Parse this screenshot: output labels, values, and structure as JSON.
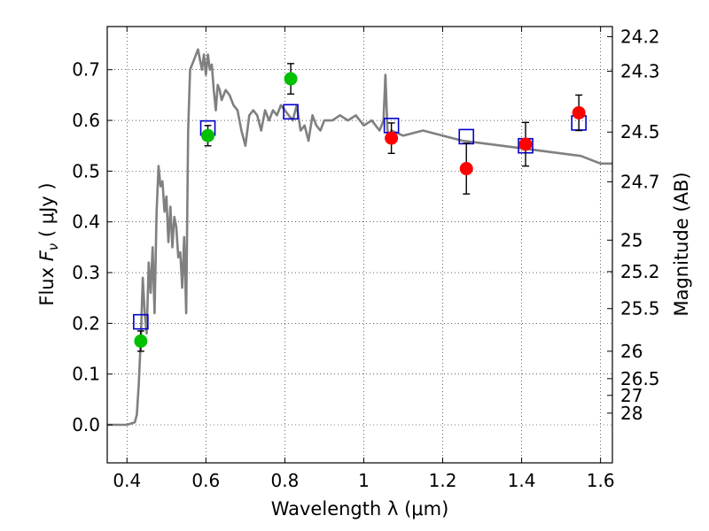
{
  "chart_data": {
    "type": "scatter",
    "xlabel": "Wavelength  λ (μm)",
    "ylabel_prefix": "Flux  ",
    "ylabel_symbol": "F",
    "ylabel_subscript": "ν",
    "ylabel_suffix": "  ( μJy )",
    "y2label": "Magnitude (AB)",
    "xlim": [
      0.35,
      1.63
    ],
    "ylim": [
      -0.075,
      0.785
    ],
    "grid": true,
    "xticks": [
      0.4,
      0.6,
      0.8,
      1.0,
      1.2,
      1.4,
      1.6
    ],
    "xtick_labels": [
      "0.4",
      "0.6",
      "0.8",
      "1",
      "1.2",
      "1.4",
      "1.6"
    ],
    "yticks": [
      0.0,
      0.1,
      0.2,
      0.3,
      0.4,
      0.5,
      0.6,
      0.7
    ],
    "ytick_labels": [
      "0.0",
      "0.1",
      "0.2",
      "0.3",
      "0.4",
      "0.5",
      "0.6",
      "0.7"
    ],
    "y2ticks": [
      {
        "label": "24.2",
        "flux": 0.765
      },
      {
        "label": "24.3",
        "flux": 0.697
      },
      {
        "label": "24.5",
        "flux": 0.577
      },
      {
        "label": "24.7",
        "flux": 0.479
      },
      {
        "label": "25",
        "flux": 0.364
      },
      {
        "label": "25.2",
        "flux": 0.302
      },
      {
        "label": "25.5",
        "flux": 0.229
      },
      {
        "label": "26",
        "flux": 0.145
      },
      {
        "label": "26.5",
        "flux": 0.091
      },
      {
        "label": "27",
        "flux": 0.058
      },
      {
        "label": "28",
        "flux": 0.023
      }
    ],
    "series": [
      {
        "kind": "line",
        "color": "#808080",
        "x": [
          0.35,
          0.4,
          0.42,
          0.425,
          0.43,
          0.435,
          0.44,
          0.445,
          0.45,
          0.455,
          0.46,
          0.465,
          0.47,
          0.475,
          0.48,
          0.485,
          0.49,
          0.495,
          0.5,
          0.505,
          0.51,
          0.515,
          0.52,
          0.525,
          0.53,
          0.535,
          0.54,
          0.545,
          0.55,
          0.555,
          0.56,
          0.57,
          0.58,
          0.585,
          0.59,
          0.595,
          0.6,
          0.605,
          0.61,
          0.615,
          0.62,
          0.625,
          0.63,
          0.635,
          0.64,
          0.65,
          0.66,
          0.67,
          0.68,
          0.69,
          0.7,
          0.71,
          0.72,
          0.73,
          0.74,
          0.75,
          0.76,
          0.77,
          0.78,
          0.79,
          0.8,
          0.81,
          0.82,
          0.83,
          0.84,
          0.85,
          0.86,
          0.87,
          0.88,
          0.89,
          0.9,
          0.92,
          0.94,
          0.96,
          0.98,
          1.0,
          1.02,
          1.04,
          1.05,
          1.055,
          1.06,
          1.065,
          1.07,
          1.1,
          1.15,
          1.2,
          1.25,
          1.3,
          1.35,
          1.4,
          1.45,
          1.5,
          1.55,
          1.6,
          1.63
        ],
        "y": [
          0.0,
          0.0,
          0.005,
          0.02,
          0.08,
          0.17,
          0.29,
          0.22,
          0.18,
          0.32,
          0.26,
          0.35,
          0.22,
          0.42,
          0.51,
          0.47,
          0.48,
          0.42,
          0.45,
          0.36,
          0.43,
          0.35,
          0.41,
          0.39,
          0.33,
          0.34,
          0.27,
          0.37,
          0.22,
          0.58,
          0.7,
          0.72,
          0.74,
          0.72,
          0.7,
          0.73,
          0.69,
          0.73,
          0.7,
          0.71,
          0.66,
          0.62,
          0.67,
          0.66,
          0.64,
          0.66,
          0.65,
          0.63,
          0.62,
          0.58,
          0.55,
          0.61,
          0.62,
          0.61,
          0.58,
          0.62,
          0.6,
          0.62,
          0.61,
          0.63,
          0.62,
          0.61,
          0.6,
          0.63,
          0.58,
          0.59,
          0.56,
          0.61,
          0.59,
          0.58,
          0.6,
          0.6,
          0.61,
          0.6,
          0.61,
          0.59,
          0.6,
          0.58,
          0.6,
          0.69,
          0.58,
          0.57,
          0.58,
          0.57,
          0.58,
          0.57,
          0.56,
          0.555,
          0.55,
          0.545,
          0.54,
          0.535,
          0.53,
          0.515,
          0.515
        ]
      },
      {
        "kind": "square",
        "color": "#0000cc",
        "x": [
          0.435,
          0.605,
          0.815,
          1.07,
          1.26,
          1.41,
          1.545
        ],
        "y": [
          0.203,
          0.585,
          0.617,
          0.59,
          0.568,
          0.55,
          0.595
        ]
      },
      {
        "kind": "circle",
        "color": "#00c000",
        "x": [
          0.435,
          0.605,
          0.815
        ],
        "y": [
          0.165,
          0.57,
          0.682
        ],
        "err": [
          0.02,
          0.02,
          0.03
        ]
      },
      {
        "kind": "circle",
        "color": "#ff0000",
        "x": [
          1.07,
          1.26,
          1.41,
          1.545
        ],
        "y": [
          0.565,
          0.505,
          0.553,
          0.615
        ],
        "err": [
          0.03,
          0.05,
          0.043,
          0.035
        ]
      }
    ]
  }
}
